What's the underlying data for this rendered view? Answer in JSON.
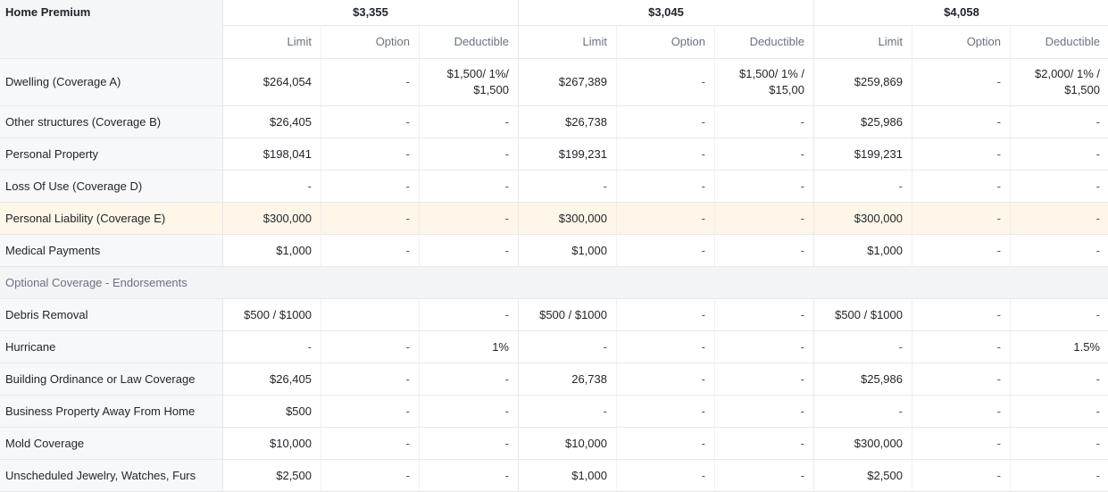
{
  "header": {
    "corner_label": "Home Premium",
    "columns": [
      "Limit",
      "Option",
      "Deductible"
    ],
    "quotes": [
      {
        "premium": "$3,355"
      },
      {
        "premium": "$3,045"
      },
      {
        "premium": "$4,058"
      }
    ]
  },
  "rows": [
    {
      "type": "data",
      "label": "Dwelling (Coverage A)",
      "cells": [
        "$264,054",
        "-",
        "$1,500/ 1%/ $1,500",
        "$267,389",
        "-",
        "$1,500/ 1% / $15,00",
        "$259,869",
        "-",
        "$2,000/ 1% / $1,500"
      ]
    },
    {
      "type": "data",
      "label": "Other structures (Coverage B)",
      "cells": [
        "$26,405",
        "-",
        "-",
        "$26,738",
        "-",
        "-",
        "$25,986",
        "-",
        "-"
      ]
    },
    {
      "type": "data",
      "label": "Personal Property",
      "cells": [
        "$198,041",
        "-",
        "-",
        "$199,231",
        "-",
        "-",
        "$199,231",
        "-",
        "-"
      ]
    },
    {
      "type": "data",
      "label": "Loss Of Use (Coverage D)",
      "cells": [
        "-",
        "-",
        "-",
        "-",
        "-",
        "-",
        "-",
        "-",
        "-"
      ]
    },
    {
      "type": "data",
      "label": "Personal Liability (Coverage E)",
      "highlight": true,
      "cells": [
        "$300,000",
        "-",
        "-",
        "$300,000",
        "-",
        "-",
        "$300,000",
        "-",
        "-"
      ]
    },
    {
      "type": "data",
      "label": "Medical Payments",
      "cells": [
        "$1,000",
        "-",
        "-",
        "$1,000",
        "-",
        "-",
        "$1,000",
        "-",
        "-"
      ]
    },
    {
      "type": "section",
      "label": "Optional Coverage - Endorsements"
    },
    {
      "type": "data",
      "label": "Debris Removal",
      "cells": [
        "$500 / $1000",
        "",
        "-",
        "$500 / $1000",
        "-",
        "-",
        "$500 / $1000",
        "-",
        "-"
      ]
    },
    {
      "type": "data",
      "label": "Hurricane",
      "cells": [
        "-",
        "-",
        "1%",
        "-",
        "-",
        "-",
        "-",
        "-",
        "1.5%"
      ]
    },
    {
      "type": "data",
      "label": "Building Ordinance or Law Coverage",
      "cells": [
        "$26,405",
        "-",
        "-",
        "26,738",
        "-",
        "-",
        "$25,986",
        "-",
        "-"
      ]
    },
    {
      "type": "data",
      "label": "Business Property Away From Home",
      "cells": [
        "$500",
        "-",
        "-",
        "-",
        "-",
        "-",
        "-",
        "-",
        "-"
      ]
    },
    {
      "type": "data",
      "label": "Mold Coverage",
      "cells": [
        "$10,000",
        "-",
        "-",
        "$10,000",
        "-",
        "-",
        "$300,000",
        "-",
        "-"
      ]
    },
    {
      "type": "data",
      "label": "Unscheduled Jewelry, Watches, Furs",
      "cells": [
        "$2,500",
        "-",
        "-",
        "$1,000",
        "-",
        "-",
        "$2,500",
        "-",
        "-"
      ]
    }
  ]
}
